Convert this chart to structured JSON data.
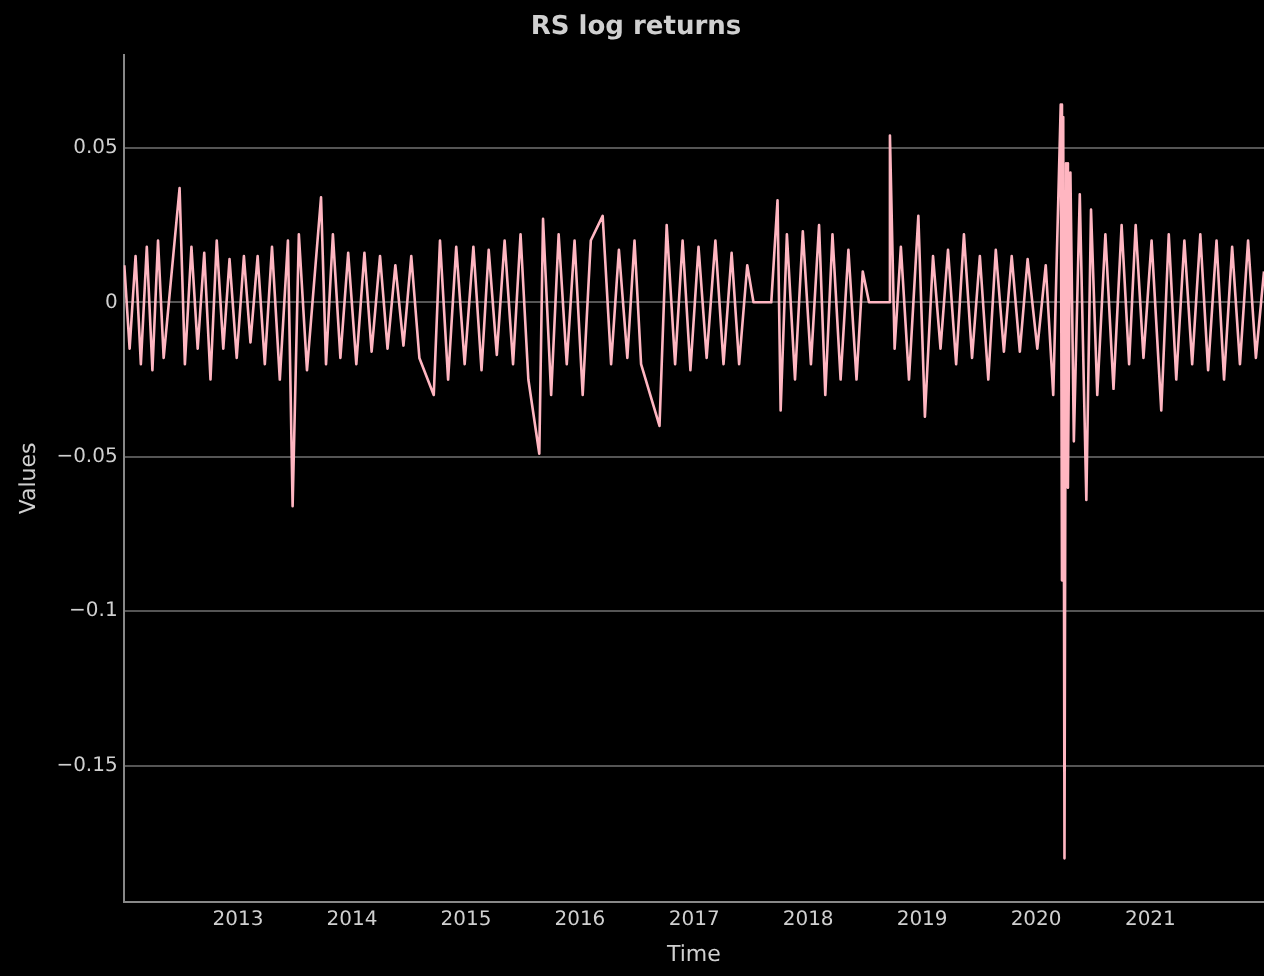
{
  "chart_data": {
    "type": "line",
    "title": "RS log returns",
    "xlabel": "Time",
    "ylabel": "Values",
    "xlim": [
      "2012-01-01",
      "2021-12-31"
    ],
    "xticks": [
      "2013",
      "2014",
      "2015",
      "2016",
      "2017",
      "2018",
      "2019",
      "2020",
      "2021"
    ],
    "ylim": [
      -0.194,
      0.08
    ],
    "yticks": [
      -0.15,
      -0.1,
      -0.05,
      0,
      0.05
    ],
    "grid": "y",
    "legend": false,
    "marker": "none",
    "line_style": "solid",
    "series": [
      {
        "color": "#ffb6c1",
        "x": [
          "2012-01-03",
          "2012-01-20",
          "2012-02-08",
          "2012-02-25",
          "2012-03-15",
          "2012-04-02",
          "2012-04-20",
          "2012-05-08",
          "2012-06-28",
          "2012-07-15",
          "2012-08-05",
          "2012-08-25",
          "2012-09-15",
          "2012-10-05",
          "2012-10-25",
          "2012-11-15",
          "2012-12-05",
          "2012-12-28",
          "2013-01-20",
          "2013-02-10",
          "2013-03-05",
          "2013-03-28",
          "2013-04-20",
          "2013-05-15",
          "2013-06-10",
          "2013-06-25",
          "2013-07-15",
          "2013-08-10",
          "2013-09-24",
          "2013-10-10",
          "2013-11-01",
          "2013-11-25",
          "2013-12-20",
          "2014-01-15",
          "2014-02-10",
          "2014-03-05",
          "2014-04-01",
          "2014-04-25",
          "2014-05-20",
          "2014-06-15",
          "2014-07-10",
          "2014-08-05",
          "2014-09-20",
          "2014-10-10",
          "2014-11-05",
          "2014-12-01",
          "2014-12-28",
          "2015-01-25",
          "2015-02-20",
          "2015-03-15",
          "2015-04-10",
          "2015-05-05",
          "2015-06-01",
          "2015-06-25",
          "2015-07-20",
          "2015-08-24",
          "2015-09-05",
          "2015-10-01",
          "2015-10-25",
          "2015-11-20",
          "2015-12-15",
          "2016-01-10",
          "2016-02-05",
          "2016-03-14",
          "2016-04-10",
          "2016-05-05",
          "2016-06-01",
          "2016-06-24",
          "2016-07-15",
          "2016-09-12",
          "2016-10-05",
          "2016-11-01",
          "2016-11-25",
          "2016-12-20",
          "2017-01-15",
          "2017-02-10",
          "2017-03-10",
          "2017-04-05",
          "2017-05-01",
          "2017-05-25",
          "2017-06-20",
          "2017-07-10",
          "2017-09-05",
          "2017-09-25",
          "2017-10-05",
          "2017-10-25",
          "2017-11-20",
          "2017-12-15",
          "2018-01-10",
          "2018-02-05",
          "2018-02-25",
          "2018-03-20",
          "2018-04-15",
          "2018-05-10",
          "2018-06-05",
          "2018-06-25",
          "2018-07-15",
          "2018-09-15",
          "2018-09-20",
          "2018-10-05",
          "2018-10-25",
          "2018-11-20",
          "2018-12-20",
          "2019-01-10",
          "2019-02-05",
          "2019-03-01",
          "2019-03-25",
          "2019-04-20",
          "2019-05-15",
          "2019-06-10",
          "2019-07-05",
          "2019-08-01",
          "2019-08-25",
          "2019-09-20",
          "2019-10-15",
          "2019-11-10",
          "2019-12-05",
          "2020-01-05",
          "2020-02-01",
          "2020-02-25",
          "2020-03-20",
          "2020-03-24",
          "2020-03-28",
          "2020-04-01",
          "2020-04-06",
          "2020-04-12",
          "2020-04-20",
          "2020-05-01",
          "2020-05-20",
          "2020-06-10",
          "2020-06-25",
          "2020-07-15",
          "2020-08-10",
          "2020-09-05",
          "2020-10-01",
          "2020-10-25",
          "2020-11-15",
          "2020-12-10",
          "2021-01-05",
          "2021-02-05",
          "2021-03-01",
          "2021-03-25",
          "2021-04-20",
          "2021-05-15",
          "2021-06-10",
          "2021-07-05",
          "2021-08-01",
          "2021-08-25",
          "2021-09-20",
          "2021-10-15",
          "2021-11-10",
          "2021-12-05",
          "2021-12-31"
        ],
        "values": [
          0.012,
          -0.015,
          0.015,
          -0.02,
          0.018,
          -0.022,
          0.02,
          -0.018,
          0.037,
          -0.02,
          0.018,
          -0.015,
          0.016,
          -0.025,
          0.02,
          -0.015,
          0.014,
          -0.018,
          0.015,
          -0.013,
          0.015,
          -0.02,
          0.018,
          -0.025,
          0.02,
          -0.066,
          0.022,
          -0.022,
          0.034,
          -0.02,
          0.022,
          -0.018,
          0.016,
          -0.02,
          0.016,
          -0.016,
          0.015,
          -0.015,
          0.012,
          -0.014,
          0.015,
          -0.018,
          -0.03,
          0.02,
          -0.025,
          0.018,
          -0.02,
          0.018,
          -0.022,
          0.017,
          -0.017,
          0.02,
          -0.02,
          0.022,
          -0.025,
          -0.049,
          0.027,
          -0.03,
          0.022,
          -0.02,
          0.02,
          -0.03,
          0.02,
          0.028,
          -0.02,
          0.017,
          -0.018,
          0.02,
          -0.02,
          -0.04,
          0.025,
          -0.02,
          0.02,
          -0.022,
          0.018,
          -0.018,
          0.02,
          -0.02,
          0.016,
          -0.02,
          0.012,
          0,
          0,
          0.033,
          -0.035,
          0.022,
          -0.025,
          0.023,
          -0.02,
          0.025,
          -0.03,
          0.022,
          -0.025,
          0.017,
          -0.025,
          0.01,
          0,
          0,
          0.054,
          -0.015,
          0.018,
          -0.025,
          0.028,
          -0.037,
          0.015,
          -0.015,
          0.017,
          -0.02,
          0.022,
          -0.018,
          0.015,
          -0.025,
          0.017,
          -0.016,
          0.015,
          -0.016,
          0.014,
          -0.015,
          0.012,
          -0.03,
          0.064,
          -0.09,
          0.06,
          -0.18,
          0.045,
          -0.06,
          0.042,
          -0.045,
          0.035,
          -0.064,
          0.03,
          -0.03,
          0.022,
          -0.028,
          0.025,
          -0.02,
          0.025,
          -0.018,
          0.02,
          -0.035,
          0.022,
          -0.025,
          0.02,
          -0.02,
          0.022,
          -0.022,
          0.02,
          -0.025,
          0.018,
          -0.02,
          0.02,
          -0.018,
          0.01
        ]
      }
    ]
  }
}
